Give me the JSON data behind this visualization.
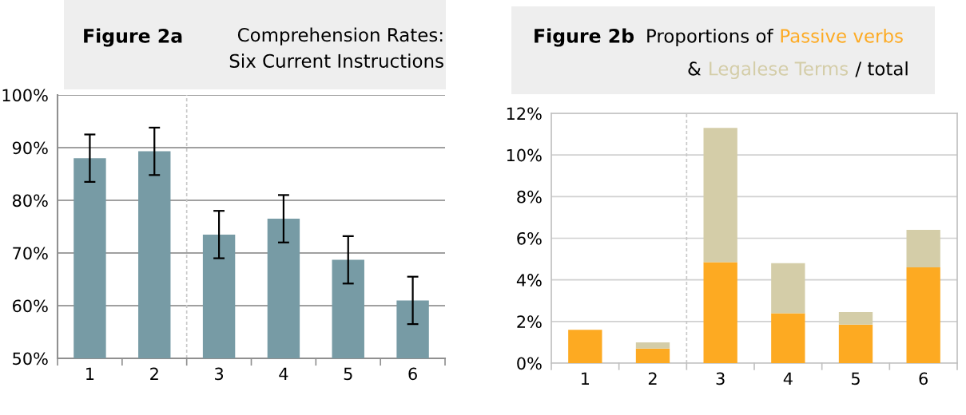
{
  "chart_data": [
    {
      "type": "bar",
      "title": "Figure 2a",
      "subtitle": "Comprehension Rates:\nSix Current Instructions",
      "categories": [
        "1",
        "2",
        "3",
        "4",
        "5",
        "6"
      ],
      "series": [
        {
          "color": "#779ba5",
          "values": [
            88,
            89.3,
            73.5,
            76.5,
            68.7,
            61.0
          ],
          "errors": [
            4.5,
            4.5,
            4.5,
            4.5,
            4.5,
            4.5
          ]
        }
      ],
      "ylim": [
        50,
        100
      ],
      "yticks": [
        {
          "value": 50,
          "label": "50%"
        },
        {
          "value": 60,
          "label": "60%"
        },
        {
          "value": 70,
          "label": "70%"
        },
        {
          "value": 80,
          "label": "80%"
        },
        {
          "value": 90,
          "label": "90%"
        },
        {
          "value": 100,
          "label": "100%"
        }
      ],
      "grid": "y"
    },
    {
      "type": "bar",
      "title": "Figure 2b",
      "subtitle": "Proportions of",
      "stacked": true,
      "categories": [
        "1",
        "2",
        "3",
        "4",
        "5",
        "6"
      ],
      "series": [
        {
          "name": "Passive verbs",
          "color": "#fdaa22",
          "values": [
            1.6,
            0.7,
            4.85,
            2.4,
            1.85,
            4.6
          ]
        },
        {
          "name": "Legalese Terms",
          "color": "#d4cda8",
          "values": [
            0,
            0.3,
            6.45,
            2.4,
            0.6,
            1.8
          ]
        }
      ],
      "annotations": [
        "&",
        "/ total"
      ],
      "ylim": [
        0,
        12
      ],
      "yticks": [
        {
          "value": 0,
          "label": "0%"
        },
        {
          "value": 2,
          "label": "2%"
        },
        {
          "value": 4,
          "label": "4%"
        },
        {
          "value": 6,
          "label": "6%"
        },
        {
          "value": 8,
          "label": "8%"
        },
        {
          "value": 10,
          "label": "10%"
        },
        {
          "value": 12,
          "label": "12%"
        }
      ],
      "grid": "y"
    }
  ]
}
